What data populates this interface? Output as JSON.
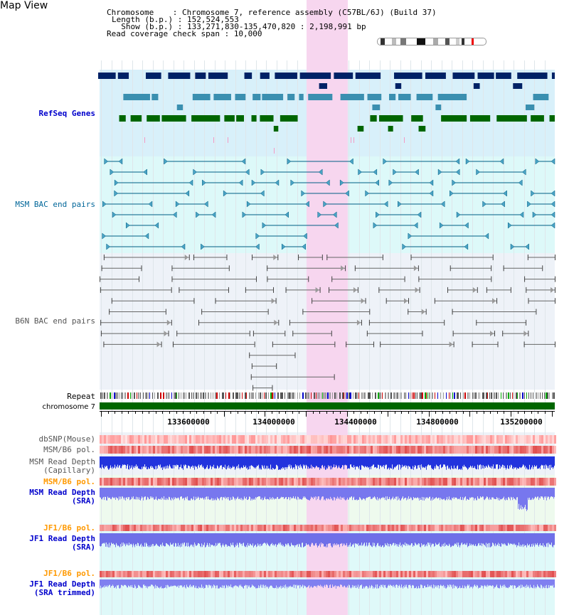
{
  "page": {
    "title": "Map View"
  },
  "info": {
    "chromosome_label": "Chromosome    : ",
    "chromosome_value": "Chromosome 7, reference assembly (C57BL/6J) (Build 37)",
    "length_label": "Length (b.p.) : ",
    "length_value": "152,524,553",
    "show_label": "  Show (b.p.) : ",
    "show_value": "133,271,830-135,470,820 : 2,198,991 bp",
    "span_label": "Read coverage check span : ",
    "span_value": "10,000"
  },
  "tracks": {
    "refseq": "RefSeq Genes",
    "msm_bac": "MSM BAC end pairs",
    "b6n_bac": "B6N BAC end pairs",
    "repeat": "Repeat",
    "chromosome": "chromosome 7",
    "dbsnp": "dbSNP(Mouse)",
    "msm_b6_pol": "MSM/B6 pol.",
    "msm_depth_cap_1": "MSM Read Depth",
    "msm_depth_cap_2": "(Capillary)",
    "msm_b6_pol_sra": "MSM/B6 pol.",
    "msm_depth_sra_1": "MSM Read Depth",
    "msm_depth_sra_2": "(SRA)",
    "jf1_b6_pol": "JF1/B6 pol.",
    "jf1_depth_1": "JF1 Read Depth",
    "jf1_depth_2": "(SRA)",
    "jf1_b6_pol_trim": "JF1/B6 pol.",
    "jf1_trim_1": "JF1 Read Depth",
    "jf1_trim_2": "(SRA trimmed)"
  },
  "ruler": {
    "ticks": [
      "133600000",
      "134000000",
      "134400000",
      "134800000",
      "135200000"
    ]
  },
  "colors": {
    "refseq_label": "#0000cc",
    "msm_label": "#006699",
    "b6n_label": "#666666",
    "orange_label": "#ff9900",
    "blue_label": "#0000cc",
    "highlight": "#f7d6ef",
    "gene_dark": "#002266",
    "gene_mid": "#3a8fb0",
    "gene_green": "#006600"
  }
}
